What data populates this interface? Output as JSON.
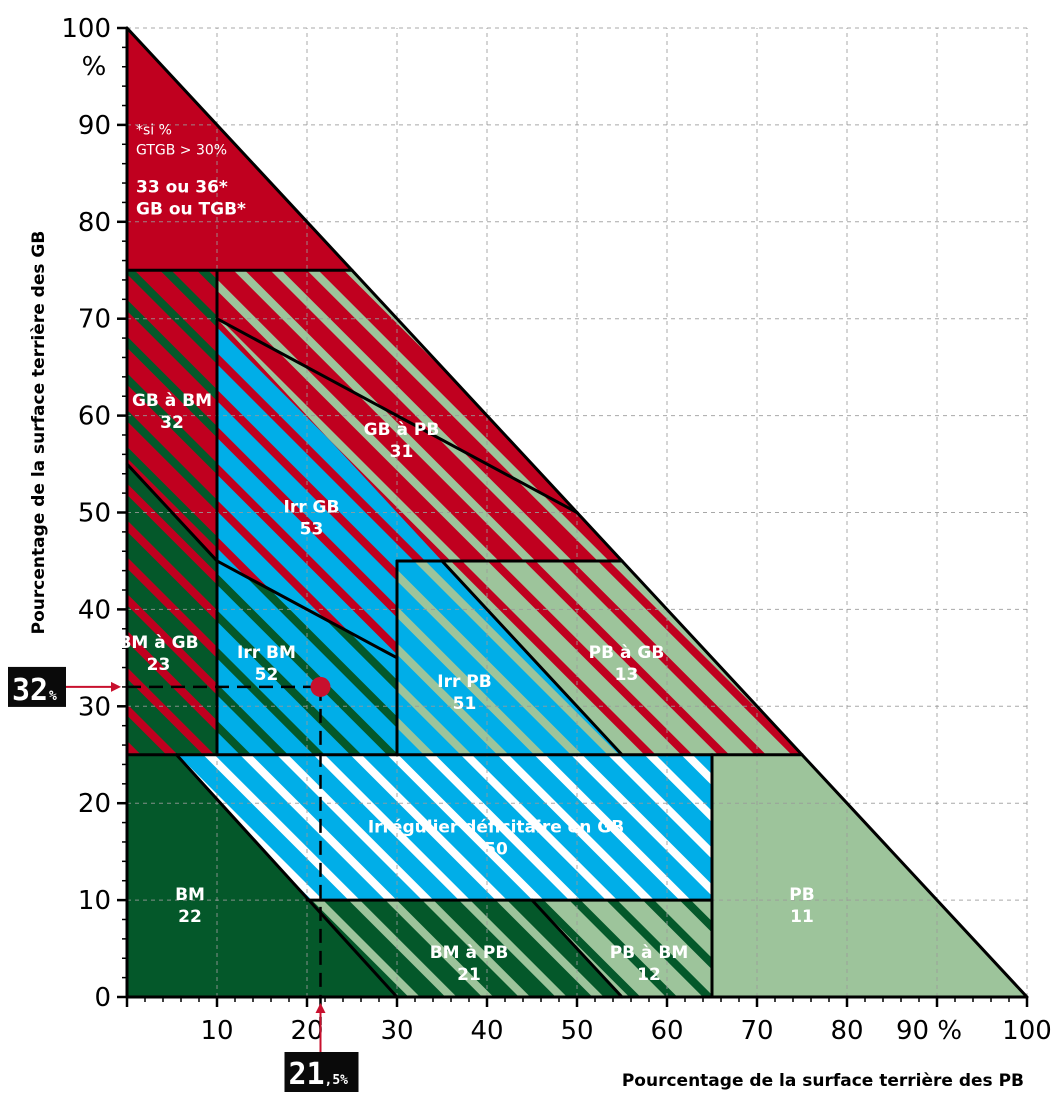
{
  "chart_data": {
    "type": "ternary-zones",
    "xlabel": "Pourcentage de la surface terrière des PB",
    "ylabel": "Pourcentage de la surface terrière des GB",
    "x_ticks": [
      "10",
      "20",
      "30",
      "40",
      "50",
      "60",
      "70",
      "80",
      "90 %",
      "100"
    ],
    "y_ticks": [
      "0",
      "10",
      "20",
      "30",
      "40",
      "50",
      "60",
      "70",
      "80",
      "90"
    ],
    "y_top_label": "100",
    "y_top_unit": "%",
    "xlim": [
      0,
      100
    ],
    "ylim": [
      0,
      100
    ],
    "grid": true,
    "colors": {
      "red": "#c0001f",
      "dark_green": "#04582a",
      "light_green": "#9dc49b",
      "blue": "#00aee8",
      "white": "#ffffff",
      "marker": "#c8102e"
    },
    "note": [
      "*si %",
      "GTGB > 30%"
    ],
    "zones": [
      {
        "id": "33",
        "lines": [
          "33 ou 36*",
          "GB ou TGB*"
        ],
        "x": 11,
        "y": 83,
        "base": "red",
        "stripe": null
      },
      {
        "id": "32",
        "lines": [
          "GB à BM",
          "32"
        ],
        "x": 5,
        "y": 61,
        "base": "red",
        "stripe": "dark_green"
      },
      {
        "id": "31",
        "lines": [
          "GB à PB",
          "31"
        ],
        "x": 30.5,
        "y": 58,
        "base": "red",
        "stripe": "light_green"
      },
      {
        "id": "53",
        "lines": [
          "Irr GB",
          "53"
        ],
        "x": 20.5,
        "y": 50,
        "base": "blue",
        "stripe": "red"
      },
      {
        "id": "23",
        "lines": [
          "BM à GB",
          "23"
        ],
        "x": 3.5,
        "y": 36,
        "base": "dark_green",
        "stripe": "red"
      },
      {
        "id": "52",
        "lines": [
          "Irr BM",
          "52"
        ],
        "x": 15.5,
        "y": 35,
        "base": "blue",
        "stripe": "dark_green"
      },
      {
        "id": "51",
        "lines": [
          "Irr PB",
          "51"
        ],
        "x": 37.5,
        "y": 32,
        "base": "blue",
        "stripe": "light_green"
      },
      {
        "id": "13",
        "lines": [
          "PB à GB",
          "13"
        ],
        "x": 55.5,
        "y": 35,
        "base": "light_green",
        "stripe": "red"
      },
      {
        "id": "50",
        "lines": [
          "Irrégulier déficitaire en GB",
          "50"
        ],
        "x": 41,
        "y": 17,
        "base": "blue",
        "stripe": "white"
      },
      {
        "id": "22",
        "lines": [
          "BM",
          "22"
        ],
        "x": 7,
        "y": 10,
        "base": "dark_green",
        "stripe": null
      },
      {
        "id": "21",
        "lines": [
          "BM à PB",
          "21"
        ],
        "x": 38,
        "y": 4,
        "base": "dark_green",
        "stripe": "light_green"
      },
      {
        "id": "12",
        "lines": [
          "PB à BM",
          "12"
        ],
        "x": 58,
        "y": 4,
        "base": "light_green",
        "stripe": "dark_green"
      },
      {
        "id": "11",
        "lines": [
          "PB",
          "11"
        ],
        "x": 75,
        "y": 10,
        "base": "light_green",
        "stripe": null
      }
    ],
    "example_point": {
      "x": 21.5,
      "y": 32,
      "x_label_main": "21",
      "x_label_sub": ",5%",
      "y_label_main": "32",
      "y_label_sub": "%"
    }
  }
}
